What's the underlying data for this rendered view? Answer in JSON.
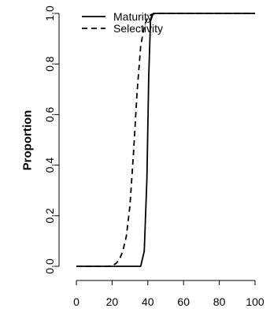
{
  "chart_data": {
    "type": "line",
    "title": "",
    "xlabel": "",
    "ylabel": "Proportion",
    "xlim": [
      0,
      100
    ],
    "ylim": [
      0,
      1
    ],
    "x_ticks": [
      0,
      20,
      40,
      60,
      80,
      100
    ],
    "x_tick_labels": [
      "0",
      "20",
      "40",
      "60",
      "80",
      "100"
    ],
    "y_ticks": [
      0,
      0.2,
      0.4,
      0.6,
      0.8,
      1
    ],
    "y_tick_labels": [
      "0.0",
      "0.2",
      "0.4",
      "0.6",
      "0.8",
      "1.0"
    ],
    "grid": false,
    "legend_position": "top-left",
    "series": [
      {
        "name": "Maturity",
        "line_style": "solid",
        "color": "#000000",
        "points": [
          [
            0,
            0
          ],
          [
            36,
            0
          ],
          [
            38,
            0.06
          ],
          [
            39.5,
            0.35
          ],
          [
            40.5,
            0.75
          ],
          [
            41.5,
            0.97
          ],
          [
            43,
            1
          ],
          [
            100,
            1
          ]
        ]
      },
      {
        "name": "Selectivity",
        "line_style": "dashed",
        "color": "#000000",
        "points": [
          [
            0,
            0
          ],
          [
            18,
            0
          ],
          [
            20,
            0.003
          ],
          [
            22,
            0.01
          ],
          [
            24,
            0.025
          ],
          [
            26,
            0.06
          ],
          [
            28,
            0.12
          ],
          [
            30,
            0.24
          ],
          [
            32,
            0.45
          ],
          [
            34,
            0.69
          ],
          [
            36,
            0.87
          ],
          [
            38,
            0.95
          ],
          [
            40,
            0.985
          ],
          [
            42,
            0.996
          ],
          [
            45,
            1
          ],
          [
            100,
            1
          ]
        ]
      }
    ]
  }
}
